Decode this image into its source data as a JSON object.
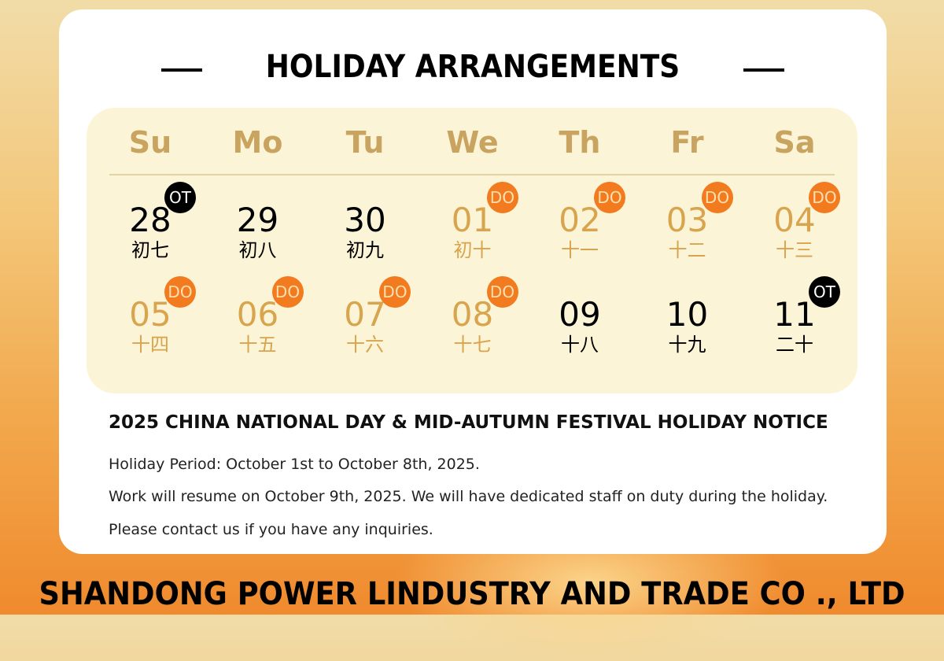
{
  "title": "HOLIDAY ARRANGEMENTS",
  "weekdays": [
    "Su",
    "Mo",
    "Tu",
    "We",
    "Th",
    "Fr",
    "Sa"
  ],
  "colors": {
    "holiday": "#d8a44e",
    "workday": "#000000",
    "do_badge": "#f27a1f",
    "ot_badge": "#000000",
    "panel": "#fcf4d6"
  },
  "weeks": [
    [
      {
        "day": "28",
        "lunar": "初七",
        "badge": "OT",
        "type": "work"
      },
      {
        "day": "29",
        "lunar": "初八",
        "badge": "",
        "type": "work"
      },
      {
        "day": "30",
        "lunar": "初九",
        "badge": "",
        "type": "work"
      },
      {
        "day": "01",
        "lunar": "初十",
        "badge": "DO",
        "type": "off"
      },
      {
        "day": "02",
        "lunar": "十一",
        "badge": "DO",
        "type": "off"
      },
      {
        "day": "03",
        "lunar": "十二",
        "badge": "DO",
        "type": "off"
      },
      {
        "day": "04",
        "lunar": "十三",
        "badge": "DO",
        "type": "off"
      }
    ],
    [
      {
        "day": "05",
        "lunar": "十四",
        "badge": "DO",
        "type": "off"
      },
      {
        "day": "06",
        "lunar": "十五",
        "badge": "DO",
        "type": "off"
      },
      {
        "day": "07",
        "lunar": "十六",
        "badge": "DO",
        "type": "off"
      },
      {
        "day": "08",
        "lunar": "十七",
        "badge": "DO",
        "type": "off"
      },
      {
        "day": "09",
        "lunar": "十八",
        "badge": "",
        "type": "work"
      },
      {
        "day": "10",
        "lunar": "十九",
        "badge": "",
        "type": "work"
      },
      {
        "day": "11",
        "lunar": "二十",
        "badge": "OT",
        "type": "work"
      }
    ]
  ],
  "notice": {
    "title": "2025 CHINA NATIONAL DAY & MID-AUTUMN FESTIVAL HOLIDAY NOTICE",
    "lines": [
      "Holiday Period: October 1st to October 8th, 2025.",
      "Work will resume on October 9th, 2025. We will have dedicated staff on duty during the holiday.",
      "Please contact us if you have any inquiries."
    ]
  },
  "company": "SHANDONG POWER LINDUSTRY AND TRADE CO ., LTD"
}
